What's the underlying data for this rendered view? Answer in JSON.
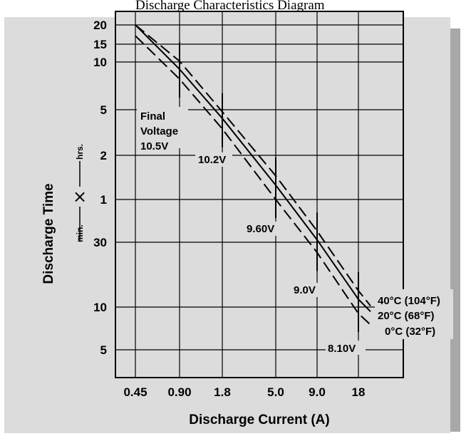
{
  "header": {
    "title": "Discharge Characteristics Diagram"
  },
  "chart_data": {
    "type": "line",
    "xlabel": "Discharge Current (A)",
    "ylabel": "Discharge Time",
    "y_unit_lower": "min.",
    "y_unit_upper": "hrs.",
    "y_unit_symbol": "×",
    "x_scale": "log",
    "y_scale": "log",
    "x_ticks": [
      "0.45",
      "0.90",
      "1.8",
      "5.0",
      "9.0",
      "18"
    ],
    "y_ticks_hours": [
      "20",
      "15",
      "10",
      "5",
      "2",
      "1"
    ],
    "y_ticks_minutes": [
      "30",
      "10",
      "5"
    ],
    "grid": true,
    "series": [
      {
        "name": "40°C (104°F)",
        "style": "dashed",
        "x": [
          0.45,
          0.9,
          1.8,
          5.0,
          9.0,
          18,
          20
        ],
        "y_hours": [
          20,
          10.2,
          4.8,
          1.45,
          0.6,
          0.22,
          0.17
        ]
      },
      {
        "name": "20°C (68°F)",
        "style": "solid",
        "x": [
          0.45,
          0.9,
          1.8,
          5.0,
          9.0,
          18,
          20
        ],
        "y_hours": [
          20,
          9.0,
          4.2,
          1.25,
          0.52,
          0.19,
          0.155
        ]
      },
      {
        "name": "0°C (32°F)",
        "style": "dashed",
        "x": [
          0.45,
          0.9,
          1.8,
          5.0,
          9.0,
          18,
          20
        ],
        "y_hours": [
          17,
          7.8,
          3.4,
          1.0,
          0.42,
          0.15,
          0.125
        ]
      }
    ],
    "final_voltage_markers": [
      {
        "x": 0.9,
        "label": "Final Voltage 10.5V"
      },
      {
        "x": 1.8,
        "label": "10.2V"
      },
      {
        "x": 5.0,
        "label": "9.60V"
      },
      {
        "x": 9.0,
        "label": "9.0V"
      },
      {
        "x": 18,
        "label": "8.10V"
      }
    ],
    "annotations": {
      "final_voltage_line1": "Final",
      "final_voltage_line2": "Voltage",
      "final_voltage_line3": "10.5V",
      "v_102": "10.2V",
      "v_960": "9.60V",
      "v_90": "9.0V",
      "v_810": "8.10V"
    },
    "legend_placement": "right"
  }
}
